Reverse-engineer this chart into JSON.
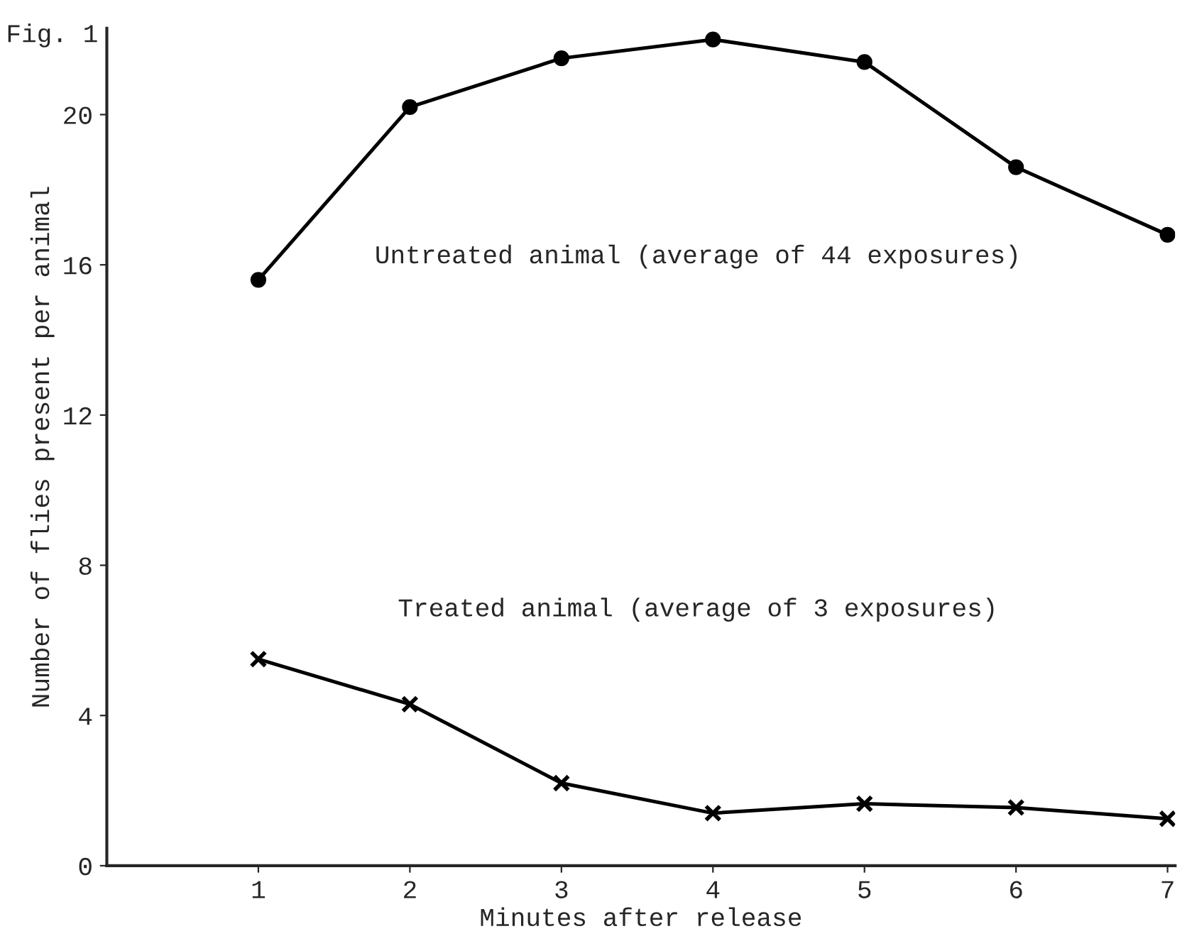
{
  "chart_data": {
    "type": "line",
    "xlabel": "Minutes after release",
    "ylabel": "Number of flies present per animal",
    "annotations": [
      "Fig. 1"
    ],
    "x": [
      1,
      2,
      3,
      4,
      5,
      6,
      7
    ],
    "series": [
      {
        "name": "Untreated animal (average of 44 exposures)",
        "color": "#000000",
        "marker": "circle",
        "values": [
          15.6,
          20.2,
          21.5,
          22.0,
          21.4,
          18.6,
          16.8
        ]
      },
      {
        "name": "Treated animal (average of 3 exposures)",
        "color": "#000000",
        "marker": "cross",
        "values": [
          5.5,
          4.3,
          2.2,
          1.4,
          1.65,
          1.55,
          1.25
        ]
      }
    ],
    "xlim": [
      0,
      7.05
    ],
    "ylim": [
      0,
      22.3
    ],
    "xticks": [
      1,
      2,
      3,
      4,
      5,
      6,
      7
    ],
    "yticks": [
      0,
      4,
      8,
      12,
      16,
      20
    ],
    "grid": false,
    "legend": false,
    "line_style": "solid"
  }
}
